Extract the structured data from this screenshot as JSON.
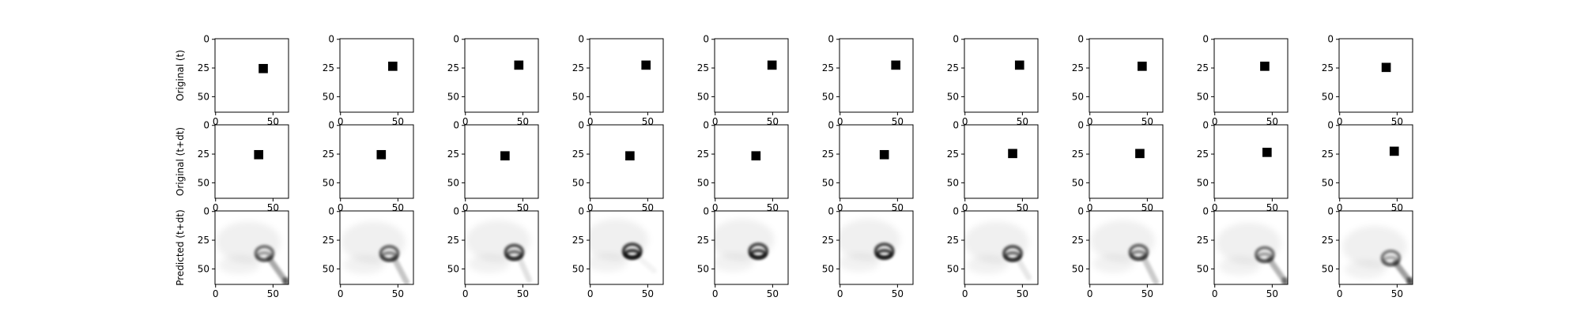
{
  "chart_data": {
    "type": "heatmap",
    "layout": "3 rows x 10 columns of image panels",
    "colormap": "grayscale (dark = high intensity)",
    "image_size": [
      64,
      64
    ],
    "axes": {
      "x_ticks": [
        0,
        50
      ],
      "y_ticks": [
        0,
        25,
        50
      ],
      "xlim": [
        0,
        64
      ],
      "ylim": [
        64,
        0
      ],
      "x_ticks_shown_on_bottom_row_only": false,
      "grid": false
    },
    "rows": [
      {
        "label": "Original (t)",
        "kind": "square",
        "square_size": 8,
        "panels": [
          {
            "cx": 42,
            "cy": 26
          },
          {
            "cx": 46,
            "cy": 24
          },
          {
            "cx": 47,
            "cy": 23
          },
          {
            "cx": 49,
            "cy": 23
          },
          {
            "cx": 50,
            "cy": 23
          },
          {
            "cx": 49,
            "cy": 23
          },
          {
            "cx": 48,
            "cy": 23
          },
          {
            "cx": 46,
            "cy": 24
          },
          {
            "cx": 44,
            "cy": 24
          },
          {
            "cx": 41,
            "cy": 25
          }
        ]
      },
      {
        "label": "Original (t+dt)",
        "kind": "square",
        "square_size": 8,
        "panels": [
          {
            "cx": 38,
            "cy": 26
          },
          {
            "cx": 36,
            "cy": 26
          },
          {
            "cx": 35,
            "cy": 27
          },
          {
            "cx": 35,
            "cy": 27
          },
          {
            "cx": 36,
            "cy": 27
          },
          {
            "cx": 39,
            "cy": 26
          },
          {
            "cx": 42,
            "cy": 25
          },
          {
            "cx": 44,
            "cy": 25
          },
          {
            "cx": 46,
            "cy": 24
          },
          {
            "cx": 48,
            "cy": 23
          }
        ]
      },
      {
        "label": "Predicted (t+dt)",
        "kind": "blob",
        "panels": [
          {
            "cx": 43,
            "cy": 37,
            "ring": 0.55,
            "core": 0.35,
            "tail": 0.75,
            "tail_to": [
              62,
              62
            ]
          },
          {
            "cx": 43,
            "cy": 37,
            "ring": 0.6,
            "core": 0.45,
            "tail": 0.5,
            "tail_to": [
              58,
              62
            ]
          },
          {
            "cx": 43,
            "cy": 36,
            "ring": 0.7,
            "core": 0.55,
            "tail": 0.25,
            "tail_to": [
              56,
              60
            ]
          },
          {
            "cx": 37,
            "cy": 35,
            "ring": 0.8,
            "core": 0.8,
            "tail": 0.1,
            "tail_to": [
              56,
              52
            ]
          },
          {
            "cx": 38,
            "cy": 35,
            "ring": 0.75,
            "core": 0.75,
            "tail": 0.05,
            "tail_to": [
              56,
              52
            ]
          },
          {
            "cx": 39,
            "cy": 35,
            "ring": 0.75,
            "core": 0.75,
            "tail": 0.05,
            "tail_to": [
              56,
              52
            ]
          },
          {
            "cx": 42,
            "cy": 37,
            "ring": 0.7,
            "core": 0.55,
            "tail": 0.2,
            "tail_to": [
              56,
              58
            ]
          },
          {
            "cx": 43,
            "cy": 36,
            "ring": 0.6,
            "core": 0.45,
            "tail": 0.45,
            "tail_to": [
              58,
              62
            ]
          },
          {
            "cx": 44,
            "cy": 38,
            "ring": 0.55,
            "core": 0.35,
            "tail": 0.65,
            "tail_to": [
              62,
              62
            ]
          },
          {
            "cx": 45,
            "cy": 41,
            "ring": 0.5,
            "core": 0.3,
            "tail": 0.85,
            "tail_to": [
              62,
              62
            ]
          }
        ]
      }
    ]
  }
}
